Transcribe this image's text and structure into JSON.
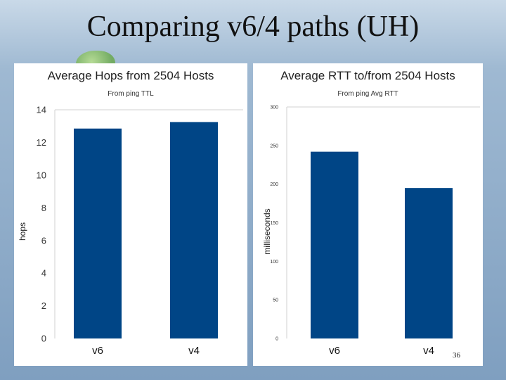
{
  "slide": {
    "title": "Comparing v6/4 paths (UH)",
    "page_number": "36",
    "bar_color": "#004586"
  },
  "chart_data": [
    {
      "type": "bar",
      "title": "Average Hops from 2504 Hosts",
      "subtitle": "From ping TTL",
      "xlabel": "",
      "ylabel": "hops",
      "categories": [
        "v6",
        "v4"
      ],
      "values": [
        12.85,
        13.25
      ],
      "ylim": [
        0,
        14
      ],
      "yticks": [
        "0",
        "2",
        "4",
        "6",
        "8",
        "10",
        "12",
        "14"
      ],
      "grid": false
    },
    {
      "type": "bar",
      "title": "Average RTT to/from 2504 Hosts",
      "subtitle": "From ping Avg RTT",
      "xlabel": "",
      "ylabel": "milliseconds",
      "categories": [
        "v6",
        "v4"
      ],
      "values": [
        242,
        195
      ],
      "ylim": [
        0,
        300
      ],
      "yticks": [
        "0",
        "50",
        "100",
        "150",
        "200",
        "250",
        "300"
      ],
      "grid": false
    }
  ]
}
